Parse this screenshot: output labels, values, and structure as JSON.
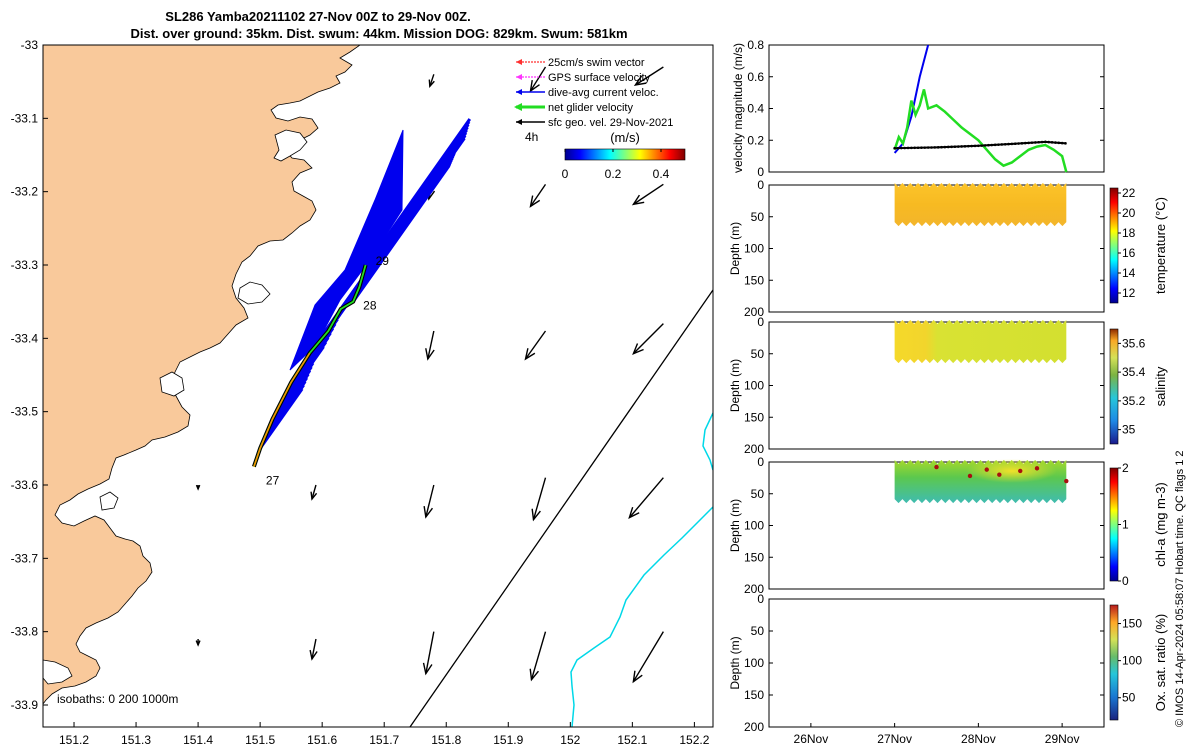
{
  "title_line1": "SL286 Yamba20211102 27-Nov 00Z to 29-Nov 00Z.",
  "title_line2": "Dist. over ground: 35km. Dist. swum: 44km. Mission DOG: 829km. Swum: 581km",
  "footer": "© IMOS 14-Apr-2024 05:58:07 Hobart time. QC flags 1  2",
  "colors": {
    "land": "#f9c99b",
    "vector": "#000000",
    "net_glider": "#22dd22",
    "dive_avg": "#0000ee",
    "isobath": "#00d8e8"
  },
  "chart_data": [
    {
      "type": "map",
      "xlim": [
        151.15,
        152.23
      ],
      "ylim": [
        -33.93,
        -33.0
      ],
      "x_ticks": [
        "151.2",
        "151.3",
        "151.4",
        "151.5",
        "151.6",
        "151.7",
        "151.8",
        "151.9",
        "152",
        "152.1",
        "152.2"
      ],
      "y_ticks": [
        "-33",
        "-33.1",
        "-33.2",
        "-33.3",
        "-33.4",
        "-33.5",
        "-33.6",
        "-33.7",
        "-33.8",
        "-33.9"
      ],
      "legend": [
        "25cm/s swim vector",
        "GPS surface velocity",
        "dive-avg current veloc.",
        "net glider velocity",
        "sfc geo. vel. 29-Nov-2021"
      ],
      "legend_extra": "4h",
      "colorbar_label": "(m/s)",
      "colorbar_ticks": [
        "0",
        "0.2",
        "0.4"
      ],
      "colorbar_range": [
        0,
        0.5
      ],
      "isobaths_label": "isobaths: 0   200  1000m",
      "day_labels": [
        "27",
        "28",
        "29"
      ],
      "glider_track": [
        [
          151.49,
          -33.575
        ],
        [
          151.5,
          -33.55
        ],
        [
          151.52,
          -33.51
        ],
        [
          151.55,
          -33.46
        ],
        [
          151.58,
          -33.42
        ],
        [
          151.61,
          -33.39
        ],
        [
          151.63,
          -33.36
        ],
        [
          151.65,
          -33.35
        ],
        [
          151.66,
          -33.33
        ],
        [
          151.67,
          -33.3
        ]
      ],
      "day_marks": [
        {
          "label": "27",
          "x": 151.49,
          "y": -33.575
        },
        {
          "label": "28",
          "x": 151.65,
          "y": -33.35
        },
        {
          "label": "29",
          "x": 151.67,
          "y": -33.3
        }
      ],
      "sfc_vectors": [
        {
          "lon": 151.78,
          "lat": -33.04,
          "u": -0.04,
          "v": -0.12
        },
        {
          "lon": 151.96,
          "lat": -33.03,
          "u": -0.15,
          "v": -0.24
        },
        {
          "lon": 152.15,
          "lat": -33.03,
          "u": -0.28,
          "v": -0.18
        },
        {
          "lon": 151.78,
          "lat": -33.18,
          "u": -0.05,
          "v": -0.22
        },
        {
          "lon": 151.96,
          "lat": -33.19,
          "u": -0.15,
          "v": -0.22
        },
        {
          "lon": 152.15,
          "lat": -33.19,
          "u": -0.3,
          "v": -0.2
        },
        {
          "lon": 151.78,
          "lat": -33.39,
          "u": -0.06,
          "v": -0.28
        },
        {
          "lon": 151.96,
          "lat": -33.39,
          "u": -0.2,
          "v": -0.28
        },
        {
          "lon": 152.15,
          "lat": -33.38,
          "u": -0.3,
          "v": -0.3
        },
        {
          "lon": 151.4,
          "lat": -33.6,
          "u": 0.0,
          "v": -0.04
        },
        {
          "lon": 151.59,
          "lat": -33.6,
          "u": -0.04,
          "v": -0.14
        },
        {
          "lon": 151.78,
          "lat": -33.6,
          "u": -0.08,
          "v": -0.32
        },
        {
          "lon": 151.96,
          "lat": -33.59,
          "u": -0.12,
          "v": -0.42
        },
        {
          "lon": 152.15,
          "lat": -33.59,
          "u": -0.34,
          "v": -0.4
        },
        {
          "lon": 151.4,
          "lat": -33.81,
          "u": 0.0,
          "v": -0.06
        },
        {
          "lon": 151.59,
          "lat": -33.81,
          "u": -0.04,
          "v": -0.2
        },
        {
          "lon": 151.78,
          "lat": -33.8,
          "u": -0.08,
          "v": -0.42
        },
        {
          "lon": 151.96,
          "lat": -33.8,
          "u": -0.14,
          "v": -0.48
        },
        {
          "lon": 152.15,
          "lat": -33.8,
          "u": -0.3,
          "v": -0.5
        }
      ]
    },
    {
      "type": "line",
      "ylabel": "velocity magnitude (m/s)",
      "xlim": [
        25.5,
        29.5
      ],
      "ylim": [
        0,
        0.8
      ],
      "y_ticks": [
        "0",
        "0.2",
        "0.4",
        "0.6",
        "0.8"
      ],
      "series": [
        {
          "color": "#0000ee",
          "x": [
            27.0,
            27.1,
            27.2,
            27.3,
            27.4
          ],
          "y": [
            0.12,
            0.18,
            0.35,
            0.6,
            0.8
          ]
        },
        {
          "color": "#22dd22",
          "x": [
            27.0,
            27.05,
            27.1,
            27.15,
            27.2,
            27.25,
            27.3,
            27.35,
            27.4,
            27.5,
            27.6,
            27.7,
            27.8,
            27.9,
            28.0,
            28.1,
            28.2,
            28.3,
            28.4,
            28.5,
            28.6,
            28.7,
            28.8,
            28.9,
            29.0,
            29.05
          ],
          "y": [
            0.14,
            0.22,
            0.18,
            0.28,
            0.45,
            0.36,
            0.42,
            0.52,
            0.4,
            0.42,
            0.38,
            0.33,
            0.28,
            0.24,
            0.2,
            0.14,
            0.08,
            0.04,
            0.06,
            0.1,
            0.14,
            0.16,
            0.17,
            0.14,
            0.1,
            0.0
          ]
        },
        {
          "color": "#000000",
          "x": [
            27.0,
            27.5,
            28.0,
            28.5,
            28.8,
            29.05
          ],
          "y": [
            0.15,
            0.155,
            0.165,
            0.18,
            0.19,
            0.18
          ]
        }
      ]
    },
    {
      "type": "heatmap",
      "ylabel": "Depth (m)",
      "colorbar_label": "temperature (°C)",
      "ylim": [
        200,
        0
      ],
      "y_ticks": [
        "0",
        "50",
        "100",
        "150",
        "200"
      ],
      "colorbar_ticks": [
        "12",
        "14",
        "16",
        "18",
        "20",
        "22"
      ],
      "colorbar_range": [
        11,
        22.5
      ],
      "x_span": [
        27.0,
        29.05
      ],
      "depth_max": 60,
      "value_range": [
        19.0,
        20.5
      ]
    },
    {
      "type": "heatmap",
      "ylabel": "Depth (m)",
      "colorbar_label": "salinity",
      "ylim": [
        200,
        0
      ],
      "y_ticks": [
        "0",
        "50",
        "100",
        "150",
        "200"
      ],
      "colorbar_ticks": [
        "35",
        "35.2",
        "35.4",
        "35.6"
      ],
      "colorbar_range": [
        34.9,
        35.7
      ],
      "x_span": [
        27.0,
        29.05
      ],
      "depth_max": 60,
      "value_range": [
        35.38,
        35.48
      ]
    },
    {
      "type": "heatmap",
      "ylabel": "Depth (m)",
      "colorbar_label": "chl-a (mg m-3)",
      "ylim": [
        200,
        0
      ],
      "y_ticks": [
        "0",
        "50",
        "100",
        "150",
        "200"
      ],
      "colorbar_ticks": [
        "0",
        "1",
        "2"
      ],
      "colorbar_range": [
        0,
        2
      ],
      "x_span": [
        27.0,
        29.05
      ],
      "depth_max": 60,
      "value_range": [
        0.6,
        1.3
      ]
    },
    {
      "type": "heatmap",
      "ylabel": "Depth (m)",
      "colorbar_label": "Ox. sat. ratio (%)",
      "ylim": [
        200,
        0
      ],
      "y_ticks": [
        "0",
        "50",
        "100",
        "150",
        "200"
      ],
      "colorbar_ticks": [
        "50",
        "100",
        "150"
      ],
      "colorbar_range": [
        20,
        175
      ],
      "x_ticks": [
        "26Nov",
        "27Nov",
        "28Nov",
        "29Nov"
      ],
      "x_tick_values": [
        26,
        27,
        28,
        29
      ]
    }
  ]
}
